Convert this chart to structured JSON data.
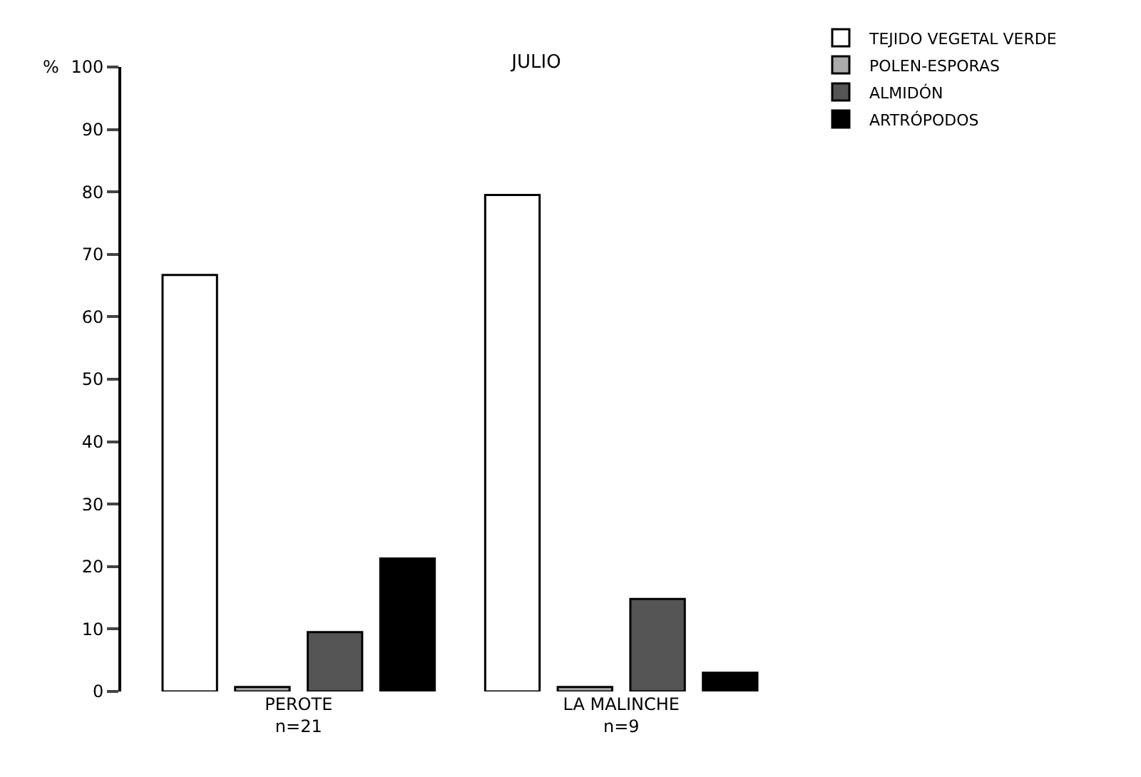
{
  "chart_data": {
    "type": "bar",
    "title": "JULIO",
    "ylabel": "%",
    "categories": [
      "PEROTE\nn=21",
      "LA MALINCHE\nn=9"
    ],
    "series": [
      {
        "name": "TEJIDO VEGETAL VERDE",
        "color": "#ffffff",
        "values": [
          66.7,
          79.5
        ]
      },
      {
        "name": "POLEN-ESPORAS",
        "color": "#aaaaaa",
        "values": [
          0.7,
          0.7
        ]
      },
      {
        "name": "ALMIDÓN",
        "color": "#555555",
        "values": [
          9.5,
          14.8
        ]
      },
      {
        "name": "ARTRÓPODOS",
        "color": "#000000",
        "values": [
          21.3,
          3
        ]
      }
    ],
    "ylim": [
      0,
      100
    ],
    "yticks": [
      0,
      10,
      20,
      30,
      40,
      50,
      60,
      70,
      80,
      90,
      100
    ],
    "grid": false,
    "legend": "top right"
  }
}
